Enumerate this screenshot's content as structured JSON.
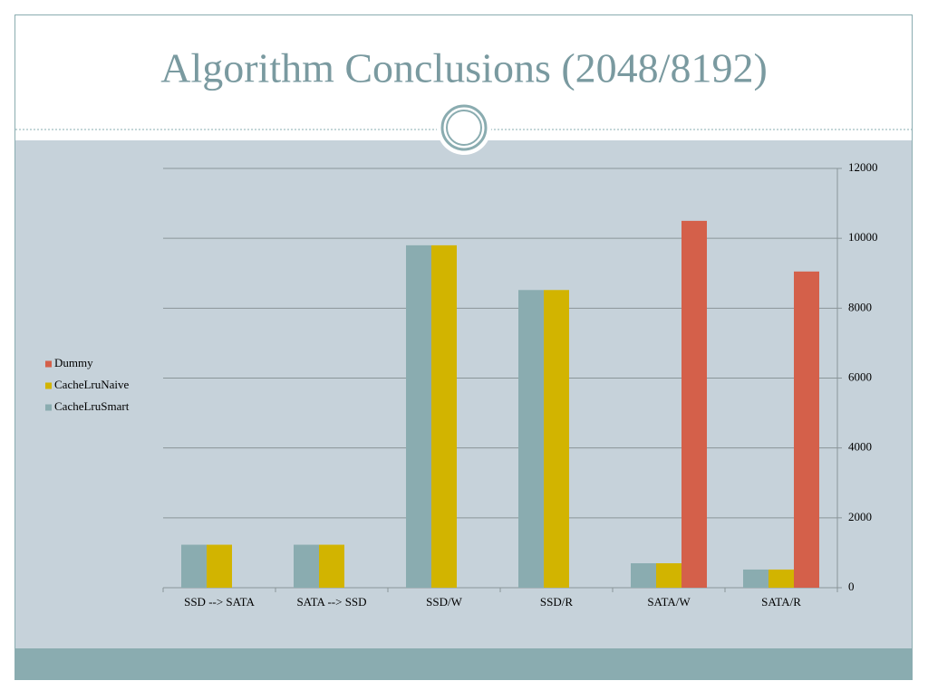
{
  "chart_data": {
    "type": "bar",
    "title": "Algorithm Conclusions (2048/8192)",
    "categories": [
      "SSD --> SATA",
      "SATA --> SSD",
      "SSD/W",
      "SSD/R",
      "SATA/W",
      "SATA/R"
    ],
    "series": [
      {
        "name": "CacheLruSmart",
        "color": "#8aacb0",
        "values": [
          1230,
          1230,
          9800,
          8520,
          700,
          520
        ]
      },
      {
        "name": "CacheLruNaive",
        "color": "#d2b400",
        "values": [
          1230,
          1230,
          9800,
          8520,
          700,
          520
        ]
      },
      {
        "name": "Dummy",
        "color": "#d4604a",
        "values": [
          null,
          null,
          null,
          null,
          10500,
          9050
        ]
      }
    ],
    "ylim": [
      0,
      12000
    ],
    "yticks": [
      0,
      2000,
      4000,
      6000,
      8000,
      10000,
      12000
    ],
    "grid": true,
    "y_axis_side": "right",
    "legend_position": "left"
  }
}
